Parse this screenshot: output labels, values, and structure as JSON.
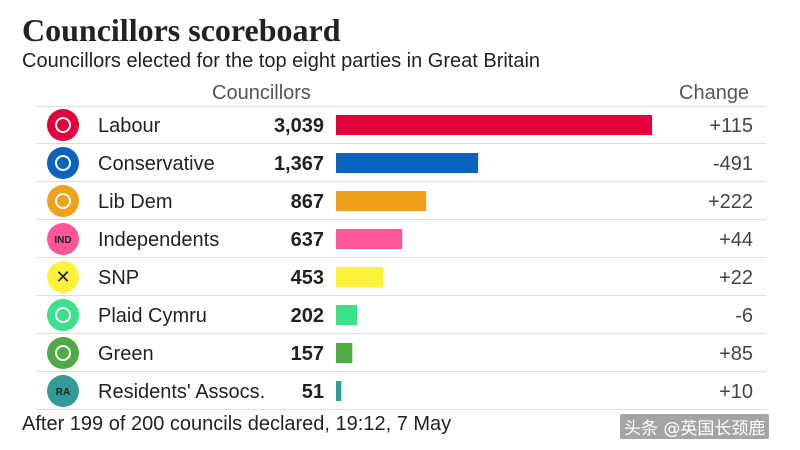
{
  "title": "Councillors scoreboard",
  "subtitle": "Councillors elected for the top eight parties in Great Britain",
  "footnote": "After 199 of 200 councils declared, 19:12, 7 May",
  "watermark": "头条 @英国长颈鹿",
  "chart_data": {
    "type": "bar",
    "orientation": "horizontal",
    "title": "Councillors scoreboard",
    "subtitle": "Councillors elected for the top eight parties in Great Britain",
    "value_label": "Councillors",
    "change_label": "Change",
    "categories": [
      "Labour",
      "Conservative",
      "Lib Dem",
      "Independents",
      "SNP",
      "Plaid Cymru",
      "Green",
      "Residents' Assocs."
    ],
    "values": [
      3039,
      1367,
      867,
      637,
      453,
      202,
      157,
      51
    ],
    "value_labels": [
      "3,039",
      "1,367",
      "867",
      "637",
      "453",
      "202",
      "157",
      "51"
    ],
    "changes": [
      "+115",
      "-491",
      "+222",
      "+44",
      "+22",
      "-6",
      "+85",
      "+10"
    ],
    "colors": [
      "#E4003B",
      "#0A64BE",
      "#EFA11C",
      "#FF5599",
      "#FFF03C",
      "#3BE08A",
      "#4FAA43",
      "#329A97"
    ],
    "logo_icons": [
      "labour-rose-icon",
      "conservative-tree-icon",
      "libdem-bird-icon",
      "ind-badge-icon",
      "snp-symbol-icon",
      "plaid-flower-icon",
      "green-tree-icon",
      "ra-badge-icon"
    ],
    "logo_texts": [
      "",
      "",
      "",
      "IND",
      "",
      "",
      "",
      "RA"
    ],
    "xlim": [
      0,
      3039
    ]
  }
}
